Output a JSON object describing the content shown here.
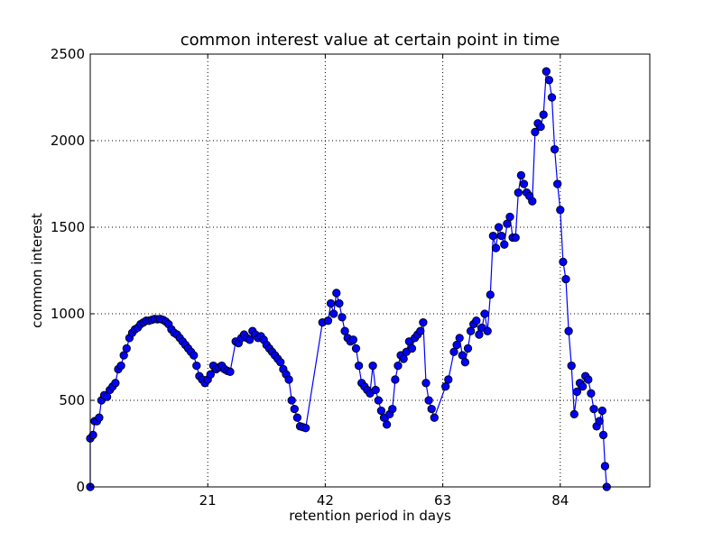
{
  "chart_data": {
    "type": "line",
    "title": "common interest value at certain point in time",
    "xlabel": "retention period in days",
    "ylabel": "common interest",
    "xlim": [
      0,
      100
    ],
    "ylim": [
      0,
      2500
    ],
    "xticks": [
      21,
      42,
      63,
      84
    ],
    "xtick_labels": [
      "21",
      "42",
      "63",
      "84"
    ],
    "yticks": [
      0,
      500,
      1000,
      1500,
      2000,
      2500
    ],
    "ytick_labels": [
      "0",
      "500",
      "1000",
      "1500",
      "2000",
      "2500"
    ],
    "grid": true,
    "series": [
      {
        "color": "#0000ff",
        "marker": "circle",
        "points": [
          [
            0,
            0
          ],
          [
            0,
            280
          ],
          [
            0.5,
            300
          ],
          [
            0.8,
            380
          ],
          [
            1.2,
            380
          ],
          [
            1.6,
            400
          ],
          [
            2,
            500
          ],
          [
            2.5,
            530
          ],
          [
            3,
            520
          ],
          [
            3.5,
            560
          ],
          [
            4,
            580
          ],
          [
            4.5,
            600
          ],
          [
            5,
            680
          ],
          [
            5.5,
            700
          ],
          [
            6,
            760
          ],
          [
            6.5,
            800
          ],
          [
            7,
            860
          ],
          [
            7.5,
            890
          ],
          [
            8,
            910
          ],
          [
            8.5,
            920
          ],
          [
            9,
            940
          ],
          [
            9.5,
            950
          ],
          [
            10,
            960
          ],
          [
            10.5,
            960
          ],
          [
            11,
            965
          ],
          [
            11.5,
            970
          ],
          [
            12,
            968
          ],
          [
            12.5,
            970
          ],
          [
            13,
            965
          ],
          [
            13.5,
            955
          ],
          [
            14,
            940
          ],
          [
            14.5,
            910
          ],
          [
            15,
            890
          ],
          [
            15.5,
            880
          ],
          [
            16,
            860
          ],
          [
            16.5,
            840
          ],
          [
            17,
            820
          ],
          [
            17.5,
            800
          ],
          [
            18,
            780
          ],
          [
            18.5,
            760
          ],
          [
            19,
            700
          ],
          [
            19.5,
            640
          ],
          [
            20,
            620
          ],
          [
            20.5,
            600
          ],
          [
            21,
            620
          ],
          [
            21.5,
            650
          ],
          [
            22,
            700
          ],
          [
            22.5,
            680
          ],
          [
            23,
            690
          ],
          [
            23.5,
            700
          ],
          [
            24,
            680
          ],
          [
            24.5,
            670
          ],
          [
            25,
            665
          ],
          [
            26,
            840
          ],
          [
            26.5,
            830
          ],
          [
            27,
            860
          ],
          [
            27.5,
            880
          ],
          [
            28,
            860
          ],
          [
            28.5,
            850
          ],
          [
            29,
            900
          ],
          [
            29.5,
            880
          ],
          [
            30,
            860
          ],
          [
            30.5,
            870
          ],
          [
            31,
            850
          ],
          [
            31.5,
            820
          ],
          [
            32,
            800
          ],
          [
            32.5,
            780
          ],
          [
            33,
            760
          ],
          [
            33.5,
            740
          ],
          [
            34,
            720
          ],
          [
            34.5,
            680
          ],
          [
            35,
            650
          ],
          [
            35.5,
            620
          ],
          [
            36,
            500
          ],
          [
            36.5,
            450
          ],
          [
            37,
            400
          ],
          [
            37.5,
            350
          ],
          [
            38,
            345
          ],
          [
            38.5,
            340
          ],
          [
            41.5,
            950
          ],
          [
            42.5,
            960
          ],
          [
            43,
            1060
          ],
          [
            43.5,
            1000
          ],
          [
            44,
            1120
          ],
          [
            44.5,
            1060
          ],
          [
            45,
            980
          ],
          [
            45.5,
            900
          ],
          [
            46,
            860
          ],
          [
            46.5,
            840
          ],
          [
            47,
            850
          ],
          [
            47.5,
            800
          ],
          [
            48,
            700
          ],
          [
            48.5,
            600
          ],
          [
            49,
            580
          ],
          [
            49.5,
            560
          ],
          [
            50,
            540
          ],
          [
            50.5,
            700
          ],
          [
            51,
            560
          ],
          [
            51.5,
            500
          ],
          [
            52,
            440
          ],
          [
            52.5,
            400
          ],
          [
            53,
            360
          ],
          [
            53.5,
            420
          ],
          [
            54,
            450
          ],
          [
            54.5,
            620
          ],
          [
            55,
            700
          ],
          [
            55.5,
            760
          ],
          [
            56,
            740
          ],
          [
            56.5,
            780
          ],
          [
            57,
            840
          ],
          [
            57.5,
            800
          ],
          [
            58,
            860
          ],
          [
            58.5,
            880
          ],
          [
            59,
            900
          ],
          [
            59.5,
            950
          ],
          [
            60,
            600
          ],
          [
            60.5,
            500
          ],
          [
            61,
            450
          ],
          [
            61.5,
            400
          ],
          [
            63.5,
            580
          ],
          [
            64,
            620
          ],
          [
            65,
            780
          ],
          [
            65.5,
            820
          ],
          [
            66,
            860
          ],
          [
            66.5,
            760
          ],
          [
            67,
            720
          ],
          [
            67.5,
            800
          ],
          [
            68,
            900
          ],
          [
            68.5,
            940
          ],
          [
            69,
            960
          ],
          [
            69.5,
            880
          ],
          [
            70,
            920
          ],
          [
            70.5,
            1000
          ],
          [
            71,
            900
          ],
          [
            71.5,
            1110
          ],
          [
            72,
            1450
          ],
          [
            72.5,
            1380
          ],
          [
            73,
            1500
          ],
          [
            73.5,
            1450
          ],
          [
            74,
            1400
          ],
          [
            74.5,
            1520
          ],
          [
            75,
            1560
          ],
          [
            75.5,
            1440
          ],
          [
            76,
            1440
          ],
          [
            76.5,
            1700
          ],
          [
            77,
            1800
          ],
          [
            77.5,
            1750
          ],
          [
            78,
            1700
          ],
          [
            78.5,
            1680
          ],
          [
            79,
            1650
          ],
          [
            79.5,
            2050
          ],
          [
            80,
            2100
          ],
          [
            80.5,
            2080
          ],
          [
            81,
            2150
          ],
          [
            81.5,
            2400
          ],
          [
            82,
            2350
          ],
          [
            82.5,
            2250
          ],
          [
            83,
            1950
          ],
          [
            83.5,
            1750
          ],
          [
            84,
            1600
          ],
          [
            84.5,
            1300
          ],
          [
            85,
            1200
          ],
          [
            85.5,
            900
          ],
          [
            86,
            700
          ],
          [
            86.5,
            420
          ],
          [
            87,
            550
          ],
          [
            87.5,
            600
          ],
          [
            88,
            580
          ],
          [
            88.5,
            640
          ],
          [
            89,
            620
          ],
          [
            89.5,
            540
          ],
          [
            90,
            450
          ],
          [
            90.5,
            350
          ],
          [
            91,
            380
          ],
          [
            91.5,
            440
          ],
          [
            91.7,
            300
          ],
          [
            92,
            120
          ],
          [
            92.3,
            0
          ]
        ]
      }
    ]
  }
}
